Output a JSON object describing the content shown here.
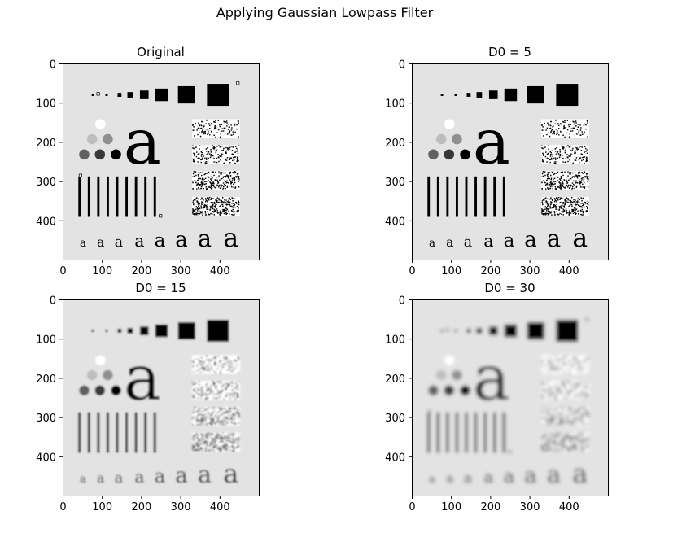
{
  "figure": {
    "suptitle": "Applying Gaussian Lowpass Filter"
  },
  "chart_data": [
    {
      "type": "image",
      "title": "Original",
      "xlim": [
        0,
        500
      ],
      "ylim": [
        500,
        0
      ],
      "xticks": [
        0,
        100,
        200,
        300,
        400
      ],
      "yticks": [
        0,
        100,
        200,
        300,
        400
      ],
      "blur_level": 0
    },
    {
      "type": "image",
      "title": "D0 = 5",
      "xlim": [
        0,
        500
      ],
      "ylim": [
        500,
        0
      ],
      "xticks": [
        0,
        100,
        200,
        300,
        400
      ],
      "yticks": [
        0,
        100,
        200,
        300,
        400
      ],
      "blur_level": 5
    },
    {
      "type": "image",
      "title": "D0 = 15",
      "xlim": [
        0,
        500
      ],
      "ylim": [
        500,
        0
      ],
      "xticks": [
        0,
        100,
        200,
        300,
        400
      ],
      "yticks": [
        0,
        100,
        200,
        300,
        400
      ],
      "blur_level": 15
    },
    {
      "type": "image",
      "title": "D0 = 30",
      "xlim": [
        0,
        500
      ],
      "ylim": [
        500,
        0
      ],
      "xticks": [
        0,
        100,
        200,
        300,
        400
      ],
      "yticks": [
        0,
        100,
        200,
        300,
        400
      ],
      "blur_level": 30
    }
  ]
}
